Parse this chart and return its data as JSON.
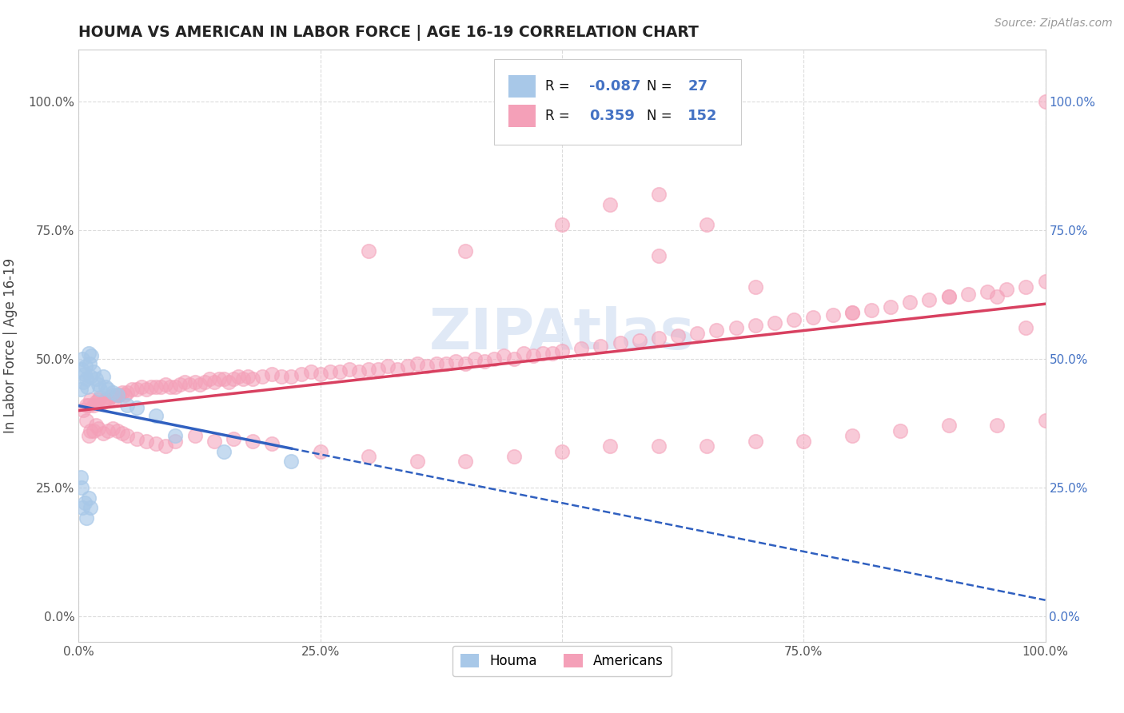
{
  "title": "HOUMA VS AMERICAN IN LABOR FORCE | AGE 16-19 CORRELATION CHART",
  "source": "Source: ZipAtlas.com",
  "ylabel": "In Labor Force | Age 16-19",
  "houma_R": -0.087,
  "houma_N": 27,
  "american_R": 0.359,
  "american_N": 152,
  "houma_color": "#a8c8e8",
  "american_color": "#f4a0b8",
  "houma_line_color": "#3060c0",
  "american_line_color": "#d84060",
  "watermark_color": "#c8d8f0",
  "title_color": "#222222",
  "source_color": "#999999",
  "legend_border_color": "#dddddd",
  "right_axis_color": "#4472c4",
  "grid_color": "#cccccc",
  "houma_x": [
    0.002,
    0.003,
    0.004,
    0.005,
    0.006,
    0.007,
    0.008,
    0.009,
    0.01,
    0.011,
    0.012,
    0.013,
    0.015,
    0.018,
    0.02,
    0.022,
    0.025,
    0.028,
    0.03,
    0.035,
    0.04,
    0.05,
    0.06,
    0.08,
    0.1,
    0.15,
    0.22
  ],
  "houma_y": [
    0.44,
    0.48,
    0.5,
    0.455,
    0.47,
    0.485,
    0.46,
    0.445,
    0.51,
    0.49,
    0.465,
    0.505,
    0.475,
    0.46,
    0.45,
    0.44,
    0.465,
    0.445,
    0.44,
    0.435,
    0.43,
    0.41,
    0.405,
    0.39,
    0.35,
    0.32,
    0.3
  ],
  "houma_extra_x": [
    0.002,
    0.003,
    0.004,
    0.006,
    0.008,
    0.01,
    0.012
  ],
  "houma_extra_y": [
    0.27,
    0.25,
    0.21,
    0.22,
    0.19,
    0.23,
    0.21
  ],
  "american_x": [
    0.005,
    0.008,
    0.01,
    0.012,
    0.015,
    0.018,
    0.02,
    0.022,
    0.025,
    0.028,
    0.03,
    0.032,
    0.035,
    0.038,
    0.04,
    0.042,
    0.045,
    0.048,
    0.05,
    0.055,
    0.06,
    0.065,
    0.07,
    0.075,
    0.08,
    0.085,
    0.09,
    0.095,
    0.1,
    0.105,
    0.11,
    0.115,
    0.12,
    0.125,
    0.13,
    0.135,
    0.14,
    0.145,
    0.15,
    0.155,
    0.16,
    0.165,
    0.17,
    0.175,
    0.18,
    0.19,
    0.2,
    0.21,
    0.22,
    0.23,
    0.24,
    0.25,
    0.26,
    0.27,
    0.28,
    0.29,
    0.3,
    0.31,
    0.32,
    0.33,
    0.34,
    0.35,
    0.36,
    0.37,
    0.38,
    0.39,
    0.4,
    0.41,
    0.42,
    0.43,
    0.44,
    0.45,
    0.46,
    0.47,
    0.48,
    0.49,
    0.5,
    0.52,
    0.54,
    0.56,
    0.58,
    0.6,
    0.62,
    0.64,
    0.66,
    0.68,
    0.7,
    0.72,
    0.74,
    0.76,
    0.78,
    0.8,
    0.82,
    0.84,
    0.86,
    0.88,
    0.9,
    0.92,
    0.94,
    0.96,
    0.98,
    1.0,
    0.008,
    0.01,
    0.012,
    0.015,
    0.018,
    0.02,
    0.025,
    0.03,
    0.035,
    0.04,
    0.045,
    0.05,
    0.06,
    0.07,
    0.08,
    0.09,
    0.1,
    0.12,
    0.14,
    0.16,
    0.18,
    0.2,
    0.25,
    0.3,
    0.35,
    0.4,
    0.45,
    0.5,
    0.55,
    0.6,
    0.65,
    0.7,
    0.75,
    0.8,
    0.85,
    0.9,
    0.95,
    1.0,
    0.3,
    0.4,
    0.5,
    0.6,
    0.7,
    0.8,
    0.9,
    0.95,
    0.98,
    1.0,
    0.55,
    0.6,
    0.65
  ],
  "american_y": [
    0.4,
    0.41,
    0.41,
    0.42,
    0.41,
    0.415,
    0.42,
    0.425,
    0.415,
    0.42,
    0.42,
    0.425,
    0.43,
    0.425,
    0.43,
    0.43,
    0.435,
    0.43,
    0.435,
    0.44,
    0.44,
    0.445,
    0.44,
    0.445,
    0.445,
    0.445,
    0.45,
    0.445,
    0.445,
    0.45,
    0.455,
    0.45,
    0.455,
    0.45,
    0.455,
    0.46,
    0.455,
    0.46,
    0.46,
    0.455,
    0.46,
    0.465,
    0.46,
    0.465,
    0.46,
    0.465,
    0.47,
    0.465,
    0.465,
    0.47,
    0.475,
    0.47,
    0.475,
    0.475,
    0.48,
    0.475,
    0.48,
    0.48,
    0.485,
    0.48,
    0.485,
    0.49,
    0.485,
    0.49,
    0.49,
    0.495,
    0.49,
    0.5,
    0.495,
    0.5,
    0.505,
    0.5,
    0.51,
    0.505,
    0.51,
    0.51,
    0.515,
    0.52,
    0.525,
    0.53,
    0.535,
    0.54,
    0.545,
    0.55,
    0.555,
    0.56,
    0.565,
    0.57,
    0.575,
    0.58,
    0.585,
    0.59,
    0.595,
    0.6,
    0.61,
    0.615,
    0.62,
    0.625,
    0.63,
    0.635,
    0.64,
    0.65,
    0.38,
    0.35,
    0.36,
    0.36,
    0.37,
    0.365,
    0.355,
    0.36,
    0.365,
    0.36,
    0.355,
    0.35,
    0.345,
    0.34,
    0.335,
    0.33,
    0.34,
    0.35,
    0.34,
    0.345,
    0.34,
    0.335,
    0.32,
    0.31,
    0.3,
    0.3,
    0.31,
    0.32,
    0.33,
    0.33,
    0.33,
    0.34,
    0.34,
    0.35,
    0.36,
    0.37,
    0.37,
    0.38,
    0.71,
    0.71,
    0.76,
    0.7,
    0.64,
    0.59,
    0.62,
    0.62,
    0.56,
    1.0,
    0.8,
    0.82,
    0.76
  ],
  "xlim": [
    0.0,
    1.0
  ],
  "ylim": [
    -0.05,
    1.1
  ],
  "xticks": [
    0.0,
    0.25,
    0.5,
    0.75,
    1.0
  ],
  "yticks": [
    0.0,
    0.25,
    0.5,
    0.75,
    1.0
  ]
}
